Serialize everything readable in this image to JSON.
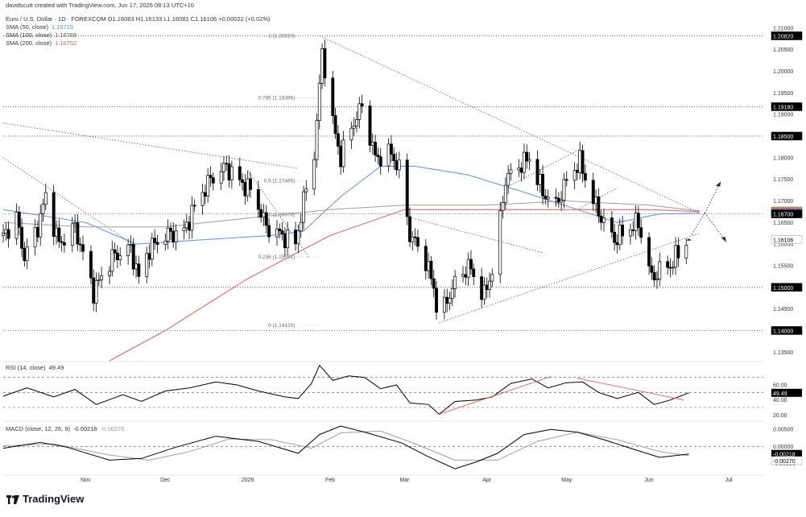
{
  "header": {
    "created_by": "davidscutt created with TradingView.com, Jun 17, 2026 08:13 UTC+10",
    "symbol_line": "Euro / U.S. Dollar · 1D · FOREXCOM  O1.16083  H1.16133  L1.16081  C1.16106  +0.00022 (+0.02%)",
    "sma50_label": "SMA (50, close)",
    "sma50_value": "1.16715",
    "sma100_label": "SMA (100, close)",
    "sma100_value": "1.16769",
    "sma200_label": "SMA (200, close)",
    "sma200_value": "1.16752",
    "rsi_label": "RSI (14, close)",
    "rsi_value": "49.49",
    "macd_label": "MACD (close, 12, 26, 9)",
    "macd_value1": "-0.00218",
    "macd_value2": "-0.00270"
  },
  "brand": {
    "name": "TradingView"
  },
  "colors": {
    "bull": "#ffffff",
    "bear": "#000000",
    "sma50": "#5b8def",
    "sma100": "#9e9e9e",
    "sma200": "#e05b5b",
    "trend_red": "#e05b5b",
    "grid": "#888888",
    "macd": "#000000",
    "signal": "#9e9e9e"
  },
  "chart_data": [
    {
      "type": "candlestick",
      "title": "Euro / U.S. Dollar · 1D · FOREXCOM",
      "ylim": [
        1.133,
        1.215
      ],
      "y_ticks": [
        1.135,
        1.14,
        1.145,
        1.15,
        1.155,
        1.16,
        1.165,
        1.17,
        1.175,
        1.18,
        1.185,
        1.19,
        1.195,
        1.2,
        1.205,
        1.21
      ],
      "y_tick_labels": [
        "1.13500",
        "1.14000",
        "1.14500",
        "1.15000",
        "1.15500",
        "1.16000",
        "1.16500",
        "1.17000",
        "1.17500",
        "1.18000",
        "1.18500",
        "1.19000",
        "1.19500",
        "1.20000",
        "1.20500",
        "1.21000"
      ],
      "x_labels": [
        {
          "label": "Nov",
          "date": "2025-11-01"
        },
        {
          "label": "Dec",
          "date": "2025-12-01"
        },
        {
          "label": "2026",
          "date": "2026-01-01"
        },
        {
          "label": "Feb",
          "date": "2026-02-01"
        },
        {
          "label": "Mar",
          "date": "2026-03-01"
        },
        {
          "label": "Apr",
          "date": "2026-04-01"
        },
        {
          "label": "May",
          "date": "2026-05-01"
        },
        {
          "label": "Jun",
          "date": "2026-06-01"
        },
        {
          "label": "Jul",
          "date": "2026-07-01"
        }
      ],
      "x_start": "2025-10-01",
      "x_end": "2026-07-14",
      "anchors": [
        [
          "2025-10-01",
          1.162
        ],
        [
          "2025-10-06",
          1.166
        ],
        [
          "2025-10-09",
          1.157
        ],
        [
          "2025-10-14",
          1.164
        ],
        [
          "2025-10-17",
          1.171
        ],
        [
          "2025-10-22",
          1.16
        ],
        [
          "2025-10-28",
          1.164
        ],
        [
          "2025-11-04",
          1.149
        ],
        [
          "2025-11-11",
          1.157
        ],
        [
          "2025-11-18",
          1.159
        ],
        [
          "2025-11-21",
          1.152
        ],
        [
          "2025-11-25",
          1.159
        ],
        [
          "2025-12-01",
          1.162
        ],
        [
          "2025-12-08",
          1.163
        ],
        [
          "2025-12-13",
          1.17
        ],
        [
          "2025-12-18",
          1.175
        ],
        [
          "2025-12-24",
          1.178
        ],
        [
          "2025-12-28",
          1.175
        ],
        [
          "2026-01-03",
          1.172
        ],
        [
          "2026-01-08",
          1.164
        ],
        [
          "2026-01-14",
          1.162
        ],
        [
          "2026-01-19",
          1.16
        ],
        [
          "2026-01-22",
          1.17
        ],
        [
          "2026-01-26",
          1.181
        ],
        [
          "2026-01-28",
          1.196
        ],
        [
          "2026-01-29",
          1.205
        ],
        [
          "2026-02-02",
          1.188
        ],
        [
          "2026-02-05",
          1.18
        ],
        [
          "2026-02-09",
          1.187
        ],
        [
          "2026-02-13",
          1.192
        ],
        [
          "2026-02-18",
          1.18
        ],
        [
          "2026-02-24",
          1.181
        ],
        [
          "2026-02-28",
          1.176
        ],
        [
          "2026-03-03",
          1.162
        ],
        [
          "2026-03-08",
          1.158
        ],
        [
          "2026-03-12",
          1.15
        ],
        [
          "2026-03-14",
          1.142
        ],
        [
          "2026-03-19",
          1.15
        ],
        [
          "2026-03-25",
          1.155
        ],
        [
          "2026-03-31",
          1.148
        ],
        [
          "2026-04-04",
          1.156
        ],
        [
          "2026-04-08",
          1.175
        ],
        [
          "2026-04-13",
          1.178
        ],
        [
          "2026-04-17",
          1.18
        ],
        [
          "2026-04-22",
          1.172
        ],
        [
          "2026-04-27",
          1.169
        ],
        [
          "2026-05-02",
          1.176
        ],
        [
          "2026-05-06",
          1.179
        ],
        [
          "2026-05-11",
          1.17
        ],
        [
          "2026-05-15",
          1.165
        ],
        [
          "2026-05-19",
          1.161
        ],
        [
          "2026-05-23",
          1.163
        ],
        [
          "2026-05-28",
          1.165
        ],
        [
          "2026-06-02",
          1.152
        ],
        [
          "2026-06-05",
          1.154
        ],
        [
          "2026-06-09",
          1.155
        ],
        [
          "2026-06-13",
          1.159
        ],
        [
          "2026-06-16",
          1.161
        ]
      ],
      "ohlc_last": {
        "open": 1.16083,
        "high": 1.16133,
        "low": 1.16081,
        "close": 1.16106,
        "change": "+0.00022 (+0.02%)"
      },
      "sma": [
        {
          "name": "SMA (50, close)",
          "value_label": "1.16715",
          "color": "#5b8def",
          "points": [
            [
              "2025-10-01",
              1.168
            ],
            [
              "2025-11-01",
              1.165
            ],
            [
              "2025-11-20",
              1.16
            ],
            [
              "2025-12-15",
              1.161
            ],
            [
              "2026-01-10",
              1.162
            ],
            [
              "2026-01-22",
              1.163
            ],
            [
              "2026-02-05",
              1.171
            ],
            [
              "2026-02-20",
              1.178
            ],
            [
              "2026-03-05",
              1.178
            ],
            [
              "2026-03-25",
              1.176
            ],
            [
              "2026-04-15",
              1.172
            ],
            [
              "2026-05-05",
              1.168
            ],
            [
              "2026-05-20",
              1.165
            ],
            [
              "2026-06-05",
              1.167
            ],
            [
              "2026-06-20",
              1.16715
            ]
          ]
        },
        {
          "name": "SMA (100, close)",
          "value_label": "1.16769",
          "color": "#9e9e9e",
          "points": [
            [
              "2025-10-01",
              1.165
            ],
            [
              "2025-11-01",
              1.164
            ],
            [
              "2025-12-01",
              1.164
            ],
            [
              "2026-01-01",
              1.166
            ],
            [
              "2026-02-01",
              1.168
            ],
            [
              "2026-03-01",
              1.169
            ],
            [
              "2026-04-01",
              1.169
            ],
            [
              "2026-05-01",
              1.17
            ],
            [
              "2026-06-01",
              1.169
            ],
            [
              "2026-06-20",
              1.16769
            ]
          ]
        },
        {
          "name": "SMA (200, close)",
          "value_label": "1.16752",
          "color": "#e05b5b",
          "points": [
            [
              "2025-11-10",
              1.133
            ],
            [
              "2025-12-01",
              1.14
            ],
            [
              "2026-01-01",
              1.152
            ],
            [
              "2026-02-01",
              1.162
            ],
            [
              "2026-03-01",
              1.168
            ],
            [
              "2026-04-01",
              1.168
            ],
            [
              "2026-05-01",
              1.168
            ],
            [
              "2026-06-01",
              1.168
            ],
            [
              "2026-06-20",
              1.16752
            ]
          ]
        }
      ],
      "fib_levels": [
        {
          "label": "1 (1.20820)",
          "value": 1.2082
        },
        {
          "label": "0.786 (1.19386)",
          "value": 1.19386
        },
        {
          "label": "0.5 (1.17465)",
          "value": 1.17465
        },
        {
          "label": "0.382 (1.16678)",
          "value": 1.16678
        },
        {
          "label": "0.236 (1.15701)",
          "value": 1.15701
        },
        {
          "label": "0 (1.14120)",
          "value": 1.1412
        }
      ],
      "horizontal_levels": [
        {
          "value": 1.2082,
          "label": "1.20820"
        },
        {
          "value": 1.1918,
          "label": "1.19180"
        },
        {
          "value": 1.185,
          "label": "1.18500"
        },
        {
          "value": 1.167,
          "label": "1.16700"
        },
        {
          "value": 1.15,
          "label": "1.15000"
        },
        {
          "value": 1.14,
          "label": "1.14000"
        }
      ],
      "trendlines": [
        {
          "from": [
            "2026-01-28",
            1.2082
          ],
          "to": [
            "2026-06-20",
            1.1672
          ]
        },
        {
          "from": [
            "2026-03-14",
            1.1418
          ],
          "to": [
            "2026-06-20",
            1.1625
          ]
        },
        {
          "from": [
            "2025-10-01",
            1.188
          ],
          "to": [
            "2026-01-20",
            1.1775
          ]
        },
        {
          "from": [
            "2025-10-01",
            1.18
          ],
          "to": [
            "2025-11-20",
            1.1595
          ]
        },
        {
          "from": [
            "2026-01-01",
            1.177
          ],
          "to": [
            "2026-01-24",
            1.157
          ]
        },
        {
          "from": [
            "2026-03-04",
            1.166
          ],
          "to": [
            "2026-04-22",
            1.158
          ]
        },
        {
          "from": [
            "2026-04-08",
            1.173
          ],
          "to": [
            "2026-05-06",
            1.182
          ]
        },
        {
          "from": [
            "2026-05-05",
            1.168
          ],
          "to": [
            "2026-05-20",
            1.173
          ]
        }
      ],
      "right_axis_labels": [
        {
          "label": "1.20820",
          "value": 1.2082,
          "bg": "#000000",
          "fg": "#ffffff"
        },
        {
          "label": "1.19180",
          "value": 1.1918,
          "bg": "#000000",
          "fg": "#ffffff"
        },
        {
          "label": "1.18500",
          "value": 1.185,
          "bg": "#000000",
          "fg": "#ffffff"
        },
        {
          "label": "1.16769",
          "value": 1.16769,
          "bg": "#7bc47b",
          "fg": "#ffffff"
        },
        {
          "label": "1.16752",
          "value": 1.16752,
          "bg": "#e05b5b",
          "fg": "#ffffff"
        },
        {
          "label": "1.16715",
          "value": 1.16715,
          "bg": "#5b8def",
          "fg": "#ffffff"
        },
        {
          "label": "1.16700",
          "value": 1.167,
          "bg": "#000000",
          "fg": "#ffffff"
        },
        {
          "label": "1.16106",
          "value": 1.16106,
          "bg": "#ffffff",
          "fg": "#000000"
        },
        {
          "label": "1.15000",
          "value": 1.15,
          "bg": "#000000",
          "fg": "#ffffff"
        },
        {
          "label": "1.14000",
          "value": 1.14,
          "bg": "#000000",
          "fg": "#ffffff"
        }
      ]
    },
    {
      "type": "line",
      "title": "RSI (14, close)",
      "ylim": [
        15,
        90
      ],
      "y_ticks": [
        20,
        40,
        60
      ],
      "y_tick_labels": [
        "20.00",
        "40.00",
        "60.00"
      ],
      "levels": [
        70,
        50,
        30
      ],
      "last_value_label": "49.49",
      "points": [
        [
          "2025-10-01",
          45
        ],
        [
          "2025-10-10",
          56
        ],
        [
          "2025-10-20",
          44
        ],
        [
          "2025-10-28",
          54
        ],
        [
          "2025-11-05",
          34
        ],
        [
          "2025-11-15",
          47
        ],
        [
          "2025-11-22",
          38
        ],
        [
          "2025-12-01",
          52
        ],
        [
          "2025-12-10",
          56
        ],
        [
          "2025-12-20",
          64
        ],
        [
          "2025-12-28",
          60
        ],
        [
          "2026-01-05",
          52
        ],
        [
          "2026-01-15",
          44
        ],
        [
          "2026-01-20",
          42
        ],
        [
          "2026-01-25",
          62
        ],
        [
          "2026-01-28",
          86
        ],
        [
          "2026-02-02",
          66
        ],
        [
          "2026-02-08",
          72
        ],
        [
          "2026-02-14",
          70
        ],
        [
          "2026-02-20",
          55
        ],
        [
          "2026-02-26",
          60
        ],
        [
          "2026-03-03",
          36
        ],
        [
          "2026-03-10",
          34
        ],
        [
          "2026-03-14",
          21
        ],
        [
          "2026-03-20",
          38
        ],
        [
          "2026-03-28",
          40
        ],
        [
          "2026-04-03",
          44
        ],
        [
          "2026-04-10",
          62
        ],
        [
          "2026-04-18",
          68
        ],
        [
          "2026-04-24",
          56
        ],
        [
          "2026-05-01",
          63
        ],
        [
          "2026-05-07",
          64
        ],
        [
          "2026-05-13",
          50
        ],
        [
          "2026-05-20",
          42
        ],
        [
          "2026-05-28",
          50
        ],
        [
          "2026-06-03",
          34
        ],
        [
          "2026-06-09",
          40
        ],
        [
          "2026-06-16",
          49.49
        ]
      ],
      "trendlines": [
        {
          "from": [
            "2026-03-14",
            21
          ],
          "to": [
            "2026-04-25",
            71
          ]
        },
        {
          "from": [
            "2026-05-05",
            69
          ],
          "to": [
            "2026-06-14",
            40
          ]
        }
      ]
    },
    {
      "type": "line",
      "title": "MACD (close, 12, 26, 9)",
      "ylim": [
        -0.0079,
        0.0067
      ],
      "y_ticks": [
        -0.005,
        0.0,
        0.005
      ],
      "y_tick_labels": [
        "-0.00500",
        "0.00000",
        "0.00500"
      ],
      "last_macd_label": "-0.00218",
      "last_signal_label": "-0.00270",
      "macd": [
        [
          "2025-10-01",
          -0.0005
        ],
        [
          "2025-10-15",
          0.0012
        ],
        [
          "2025-10-25",
          -0.0002
        ],
        [
          "2025-11-10",
          -0.004
        ],
        [
          "2025-11-22",
          -0.0035
        ],
        [
          "2025-12-05",
          -0.0002
        ],
        [
          "2025-12-20",
          0.003
        ],
        [
          "2026-01-05",
          0.0015
        ],
        [
          "2026-01-20",
          -0.002
        ],
        [
          "2026-01-28",
          0.0035
        ],
        [
          "2026-02-05",
          0.006
        ],
        [
          "2026-02-15",
          0.004
        ],
        [
          "2026-02-28",
          0.001
        ],
        [
          "2026-03-10",
          -0.003
        ],
        [
          "2026-03-20",
          -0.0065
        ],
        [
          "2026-03-28",
          -0.0045
        ],
        [
          "2026-04-05",
          -0.002
        ],
        [
          "2026-04-15",
          0.0035
        ],
        [
          "2026-04-25",
          0.005
        ],
        [
          "2026-05-05",
          0.0042
        ],
        [
          "2026-05-15",
          0.002
        ],
        [
          "2026-05-25",
          -0.0005
        ],
        [
          "2026-06-05",
          -0.0032
        ],
        [
          "2026-06-16",
          -0.00218
        ]
      ],
      "signal": [
        [
          "2025-10-01",
          0.0002
        ],
        [
          "2025-10-20",
          0.0008
        ],
        [
          "2025-11-10",
          -0.0025
        ],
        [
          "2025-11-25",
          -0.004
        ],
        [
          "2025-12-10",
          -0.0015
        ],
        [
          "2025-12-25",
          0.0022
        ],
        [
          "2026-01-10",
          0.002
        ],
        [
          "2026-01-25",
          -0.0005
        ],
        [
          "2026-02-05",
          0.004
        ],
        [
          "2026-02-20",
          0.0045
        ],
        [
          "2026-03-05",
          0.0008
        ],
        [
          "2026-03-20",
          -0.004
        ],
        [
          "2026-04-05",
          -0.004
        ],
        [
          "2026-04-20",
          0.0015
        ],
        [
          "2026-05-05",
          0.0042
        ],
        [
          "2026-05-20",
          0.002
        ],
        [
          "2026-06-05",
          -0.0015
        ],
        [
          "2026-06-16",
          -0.0027
        ]
      ]
    }
  ]
}
